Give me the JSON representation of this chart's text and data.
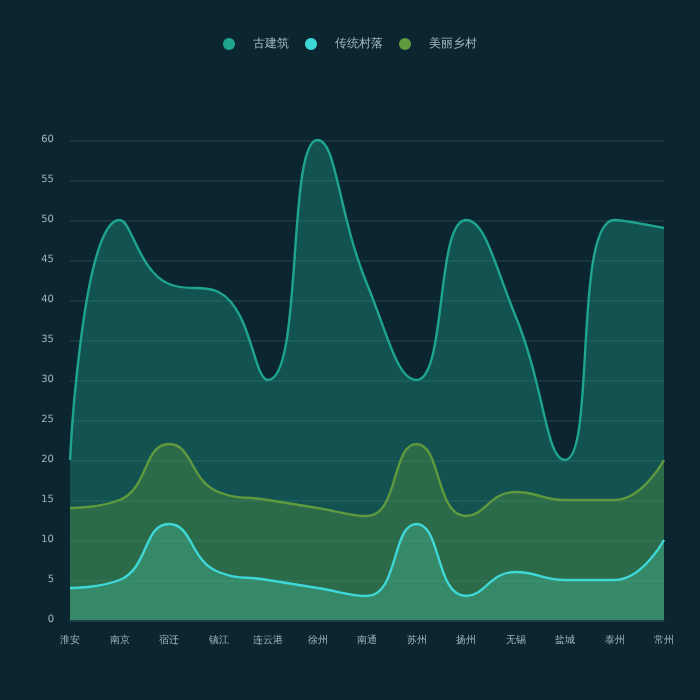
{
  "chart_data": {
    "type": "area",
    "categories": [
      "淮安",
      "南京",
      "宿迁",
      "镇江",
      "连云港",
      "徐州",
      "南通",
      "苏州",
      "扬州",
      "无锡",
      "盐城",
      "泰州",
      "常州"
    ],
    "series": [
      {
        "name": "古建筑",
        "color": "#1fa58e",
        "values": [
          20,
          50,
          42,
          41,
          30,
          60,
          42,
          30,
          50,
          38,
          20,
          50,
          49
        ]
      },
      {
        "name": "传统村落",
        "color": "#3fd8d8",
        "values": [
          4,
          5,
          12,
          6,
          5,
          4,
          3,
          12,
          3,
          6,
          5,
          5,
          10
        ]
      },
      {
        "name": "美丽乡村",
        "color": "#5f9a3e",
        "values": [
          14,
          15,
          22,
          16,
          15,
          14,
          13,
          22,
          13,
          16,
          15,
          15,
          20
        ]
      }
    ],
    "ylim": [
      0,
      60
    ],
    "yticks": [
      0,
      5,
      10,
      15,
      20,
      25,
      30,
      35,
      40,
      45,
      50,
      55,
      60
    ],
    "grid": "y",
    "legend": "top",
    "marker": "none",
    "line_style": "solid"
  }
}
